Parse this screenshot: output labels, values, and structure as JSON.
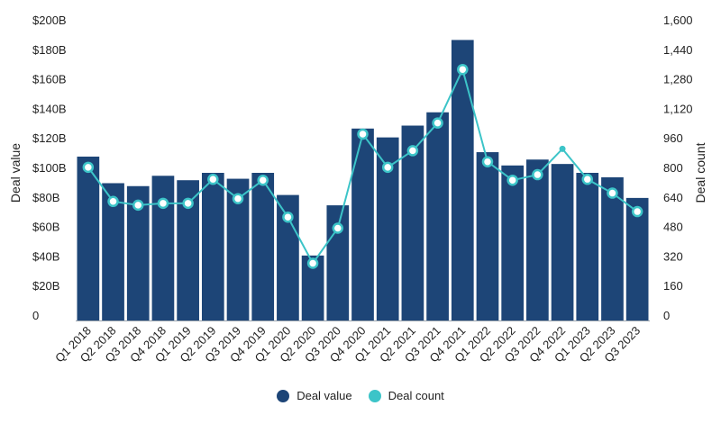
{
  "chart_data": {
    "type": "bar",
    "categories": [
      "Q1 2018",
      "Q2 2018",
      "Q3 2018",
      "Q4 2018",
      "Q1 2019",
      "Q2 2019",
      "Q3 2019",
      "Q4 2019",
      "Q1 2020",
      "Q2 2020",
      "Q3 2020",
      "Q4 2020",
      "Q1 2021",
      "Q2 2021",
      "Q3 2021",
      "Q4 2021",
      "Q1 2022",
      "Q2 2022",
      "Q3 2022",
      "Q4 2022",
      "Q1 2023",
      "Q2 2023",
      "Q3 2023"
    ],
    "series": [
      {
        "name": "Deal value",
        "type": "bar",
        "axis": "left",
        "color": "#1d4577",
        "values": [
          111,
          93,
          91,
          98,
          95,
          100,
          96,
          100,
          85,
          44,
          78,
          130,
          124,
          132,
          141,
          190,
          114,
          105,
          109,
          106,
          100,
          97,
          83
        ]
      },
      {
        "name": "Deal count",
        "type": "line",
        "axis": "right",
        "color": "#3cc4c8",
        "values": [
          830,
          645,
          625,
          635,
          635,
          765,
          660,
          760,
          560,
          310,
          500,
          1010,
          830,
          920,
          1070,
          1360,
          860,
          760,
          790,
          930,
          765,
          690,
          590
        ],
        "unmarked_points": [
          19
        ]
      }
    ],
    "ylabel": "Deal value",
    "y2label": "Deal count",
    "ylim": [
      0,
      200
    ],
    "y2lim": [
      0,
      1600
    ],
    "yticks": [
      "0",
      "$20B",
      "$40B",
      "$60B",
      "$80B",
      "$100B",
      "$120B",
      "$140B",
      "$160B",
      "$180B",
      "$200B"
    ],
    "y2ticks": [
      "0",
      "160",
      "320",
      "480",
      "640",
      "800",
      "960",
      "1,120",
      "1,280",
      "1,440",
      "1,600"
    ],
    "legend_position": "bottom",
    "grid": false
  },
  "legend": {
    "value_label": "Deal value",
    "count_label": "Deal count",
    "value_color": "#1d4577",
    "count_color": "#3cc4c8"
  }
}
